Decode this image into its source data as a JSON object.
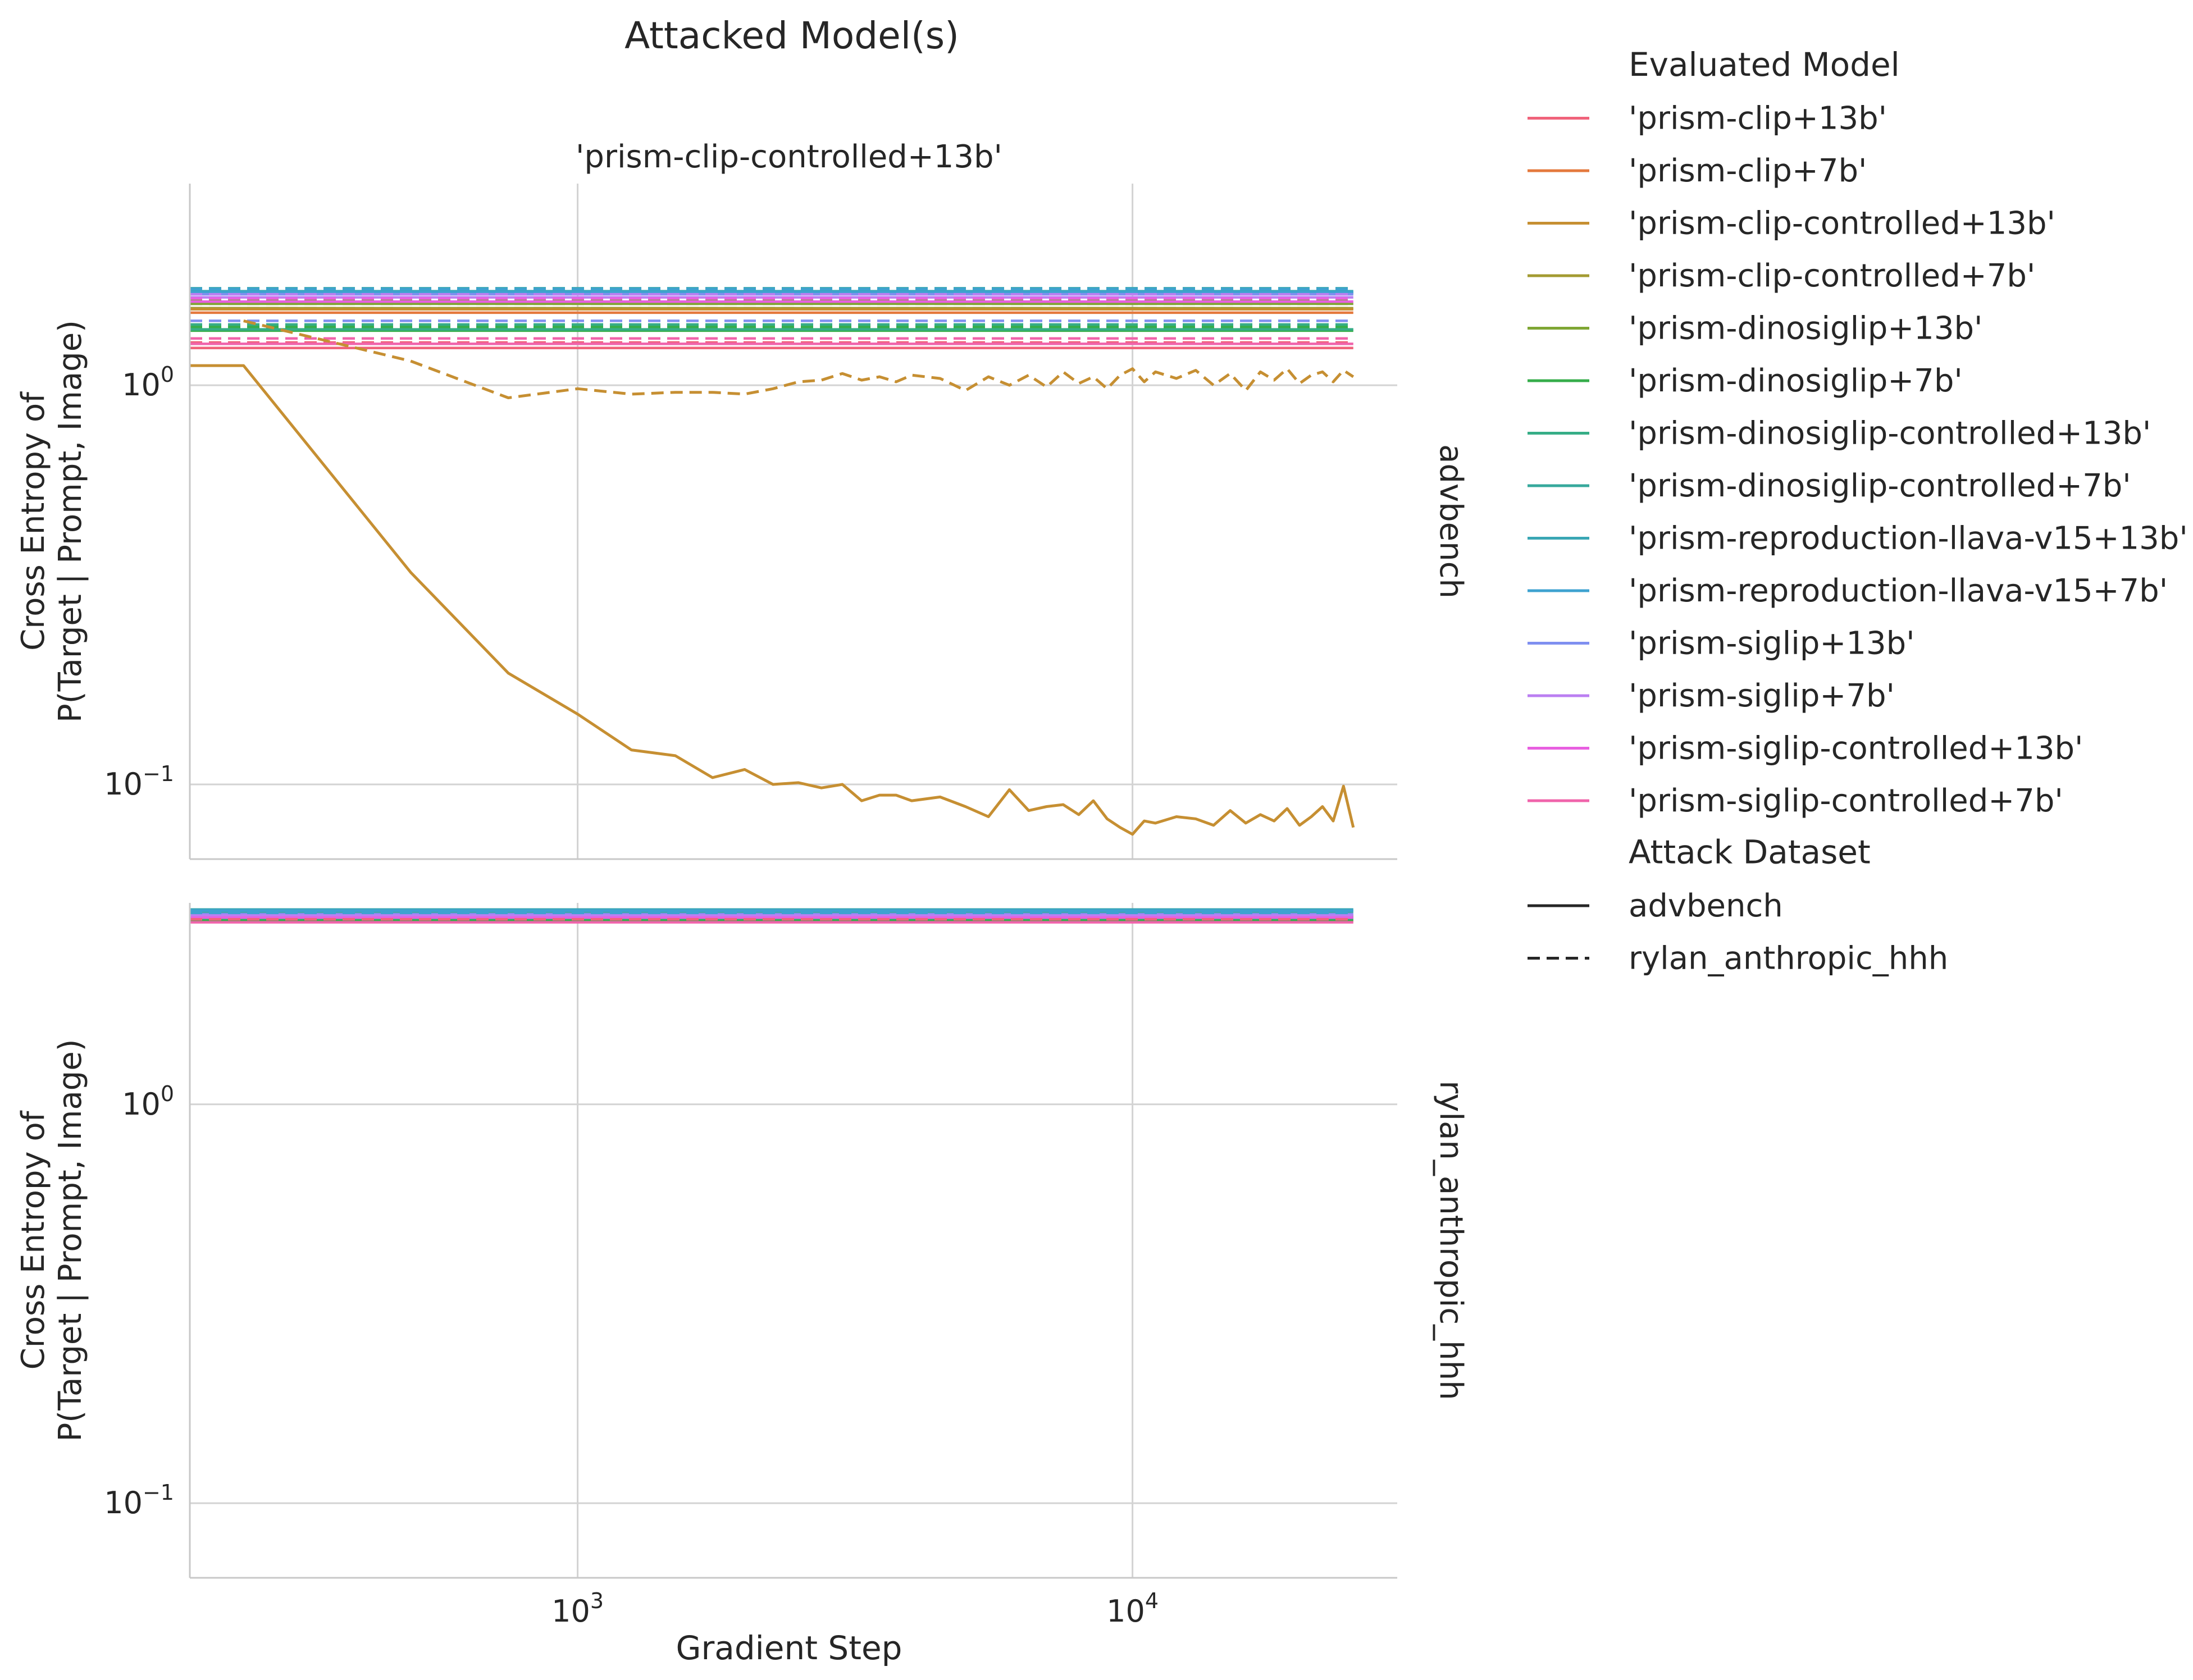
{
  "chart_data": {
    "type": "line",
    "suptitle": "Attacked Model(s)",
    "column_title": "'prism-clip-controlled+13b'",
    "xlabel": "Gradient Step",
    "ylabel_line1": "Cross Entropy of",
    "ylabel_line2": "P(Target | Prompt, Image)",
    "x_scale": "log",
    "y_scale": "log",
    "xlim": [
      200,
      30000
    ],
    "x_ticks": [
      {
        "base": "10",
        "exp": "3",
        "value": 1000
      },
      {
        "base": "10",
        "exp": "4",
        "value": 10000
      }
    ],
    "y_ticks": [
      {
        "base": "10",
        "exp": "0",
        "value": 1.0
      },
      {
        "base": "10",
        "exp": "−1",
        "value": 0.1
      }
    ],
    "grid": true,
    "panels": [
      {
        "row_label": "advbench",
        "ylim": [
          0.065,
          3.2
        ],
        "flat_lines": [
          {
            "model": 0,
            "dash": "solid",
            "value": 1.24
          },
          {
            "model": 0,
            "dash": "dashed",
            "value": 1.28
          },
          {
            "model": 1,
            "dash": "solid",
            "value": 1.52
          },
          {
            "model": 1,
            "dash": "dashed",
            "value": 1.56
          },
          {
            "model": 3,
            "dash": "solid",
            "value": 1.56
          },
          {
            "model": 3,
            "dash": "dashed",
            "value": 1.6
          },
          {
            "model": 4,
            "dash": "solid",
            "value": 1.6
          },
          {
            "model": 4,
            "dash": "dashed",
            "value": 1.63
          },
          {
            "model": 5,
            "dash": "solid",
            "value": 1.37
          },
          {
            "model": 5,
            "dash": "dashed",
            "value": 1.4
          },
          {
            "model": 6,
            "dash": "solid",
            "value": 1.38
          },
          {
            "model": 6,
            "dash": "dashed",
            "value": 1.42
          },
          {
            "model": 7,
            "dash": "solid",
            "value": 1.7
          },
          {
            "model": 7,
            "dash": "dashed",
            "value": 1.73
          },
          {
            "model": 8,
            "dash": "solid",
            "value": 1.72
          },
          {
            "model": 8,
            "dash": "dashed",
            "value": 1.75
          },
          {
            "model": 9,
            "dash": "solid",
            "value": 1.71
          },
          {
            "model": 9,
            "dash": "dashed",
            "value": 1.74
          },
          {
            "model": 10,
            "dash": "solid",
            "value": 1.69
          },
          {
            "model": 10,
            "dash": "dashed",
            "value": 1.45
          },
          {
            "model": 11,
            "dash": "solid",
            "value": 1.66
          },
          {
            "model": 11,
            "dash": "dashed",
            "value": 1.69
          },
          {
            "model": 12,
            "dash": "solid",
            "value": 1.62
          },
          {
            "model": 12,
            "dash": "dashed",
            "value": 1.65
          },
          {
            "model": 13,
            "dash": "solid",
            "value": 1.27
          },
          {
            "model": 13,
            "dash": "dashed",
            "value": 1.31
          }
        ],
        "attacked_series": [
          {
            "model": 2,
            "dash": "solid",
            "x": [
              200,
              250,
              500,
              750,
              1000,
              1250,
              1500,
              1750,
              2000,
              2250,
              2500,
              2750,
              3000,
              3250,
              3500,
              3750,
              4000,
              4500,
              5000,
              5500,
              6000,
              6500,
              7000,
              7500,
              8000,
              8500,
              9000,
              9500,
              10000,
              10500,
              11000,
              12000,
              13000,
              14000,
              15000,
              16000,
              17000,
              18000,
              19000,
              20000,
              21000,
              22000,
              23000,
              24000,
              25000
            ],
            "y": [
              1.12,
              1.12,
              0.34,
              0.19,
              0.15,
              0.122,
              0.118,
              0.104,
              0.109,
              0.1,
              0.101,
              0.098,
              0.1,
              0.091,
              0.094,
              0.094,
              0.091,
              0.093,
              0.088,
              0.083,
              0.097,
              0.086,
              0.088,
              0.089,
              0.084,
              0.091,
              0.082,
              0.078,
              0.075,
              0.081,
              0.08,
              0.083,
              0.082,
              0.079,
              0.086,
              0.08,
              0.084,
              0.081,
              0.087,
              0.079,
              0.083,
              0.088,
              0.081,
              0.099,
              0.078
            ]
          },
          {
            "model": 2,
            "dash": "dashed",
            "x": [
              250,
              500,
              750,
              1000,
              1250,
              1500,
              1750,
              2000,
              2250,
              2500,
              2750,
              3000,
              3250,
              3500,
              3750,
              4000,
              4500,
              5000,
              5500,
              6000,
              6500,
              7000,
              7500,
              8000,
              8500,
              9000,
              9500,
              10000,
              10500,
              11000,
              12000,
              13000,
              14000,
              15000,
              16000,
              17000,
              18000,
              19000,
              20000,
              21000,
              22000,
              23000,
              24000,
              25000
            ],
            "y": [
              1.45,
              1.15,
              0.93,
              0.98,
              0.95,
              0.96,
              0.96,
              0.95,
              0.98,
              1.02,
              1.03,
              1.07,
              1.03,
              1.05,
              1.02,
              1.06,
              1.04,
              0.97,
              1.05,
              1.0,
              1.06,
              0.99,
              1.08,
              1.01,
              1.05,
              0.98,
              1.06,
              1.1,
              1.02,
              1.08,
              1.04,
              1.09,
              1.0,
              1.07,
              0.97,
              1.08,
              1.03,
              1.1,
              1.01,
              1.06,
              1.08,
              1.02,
              1.09,
              1.05
            ]
          },
          {
            "model": 2,
            "dash": "flat-solid-top",
            "value": 1.55
          }
        ]
      },
      {
        "row_label": "rylan_anthropic_hhh",
        "ylim": [
          0.065,
          3.2
        ],
        "flat_lines": [
          {
            "model": 0,
            "dash": "solid",
            "value": 2.88
          },
          {
            "model": 1,
            "dash": "solid",
            "value": 2.95
          },
          {
            "model": 2,
            "dash": "dashed",
            "value": 2.92
          },
          {
            "model": 3,
            "dash": "solid",
            "value": 2.96
          },
          {
            "model": 4,
            "dash": "solid",
            "value": 2.97
          },
          {
            "model": 5,
            "dash": "solid",
            "value": 2.9
          },
          {
            "model": 6,
            "dash": "solid",
            "value": 2.93
          },
          {
            "model": 7,
            "dash": "solid",
            "value": 3.04
          },
          {
            "model": 8,
            "dash": "solid",
            "value": 3.08
          },
          {
            "model": 9,
            "dash": "solid",
            "value": 3.06
          },
          {
            "model": 10,
            "dash": "solid",
            "value": 3.0
          },
          {
            "model": 11,
            "dash": "solid",
            "value": 2.98
          },
          {
            "model": 12,
            "dash": "solid",
            "value": 2.94
          },
          {
            "model": 13,
            "dash": "solid",
            "value": 2.86
          },
          {
            "model": 0,
            "dash": "dashed",
            "value": 2.91
          },
          {
            "model": 9,
            "dash": "dashed",
            "value": 3.02
          }
        ]
      }
    ],
    "legend": {
      "placement": "right",
      "hue_title": "Evaluated Model",
      "models": [
        {
          "name": "'prism-clip+13b'",
          "color": "#f0637b"
        },
        {
          "name": "'prism-clip+7b'",
          "color": "#e4793d"
        },
        {
          "name": "'prism-clip-controlled+13b'",
          "color": "#c68f32"
        },
        {
          "name": "'prism-clip-controlled+7b'",
          "color": "#a39b32"
        },
        {
          "name": "'prism-dinosiglip+13b'",
          "color": "#7fa634"
        },
        {
          "name": "'prism-dinosiglip+7b'",
          "color": "#36ad4b"
        },
        {
          "name": "'prism-dinosiglip-controlled+13b'",
          "color": "#36ad86"
        },
        {
          "name": "'prism-dinosiglip-controlled+7b'",
          "color": "#37a99c"
        },
        {
          "name": "'prism-reproduction-llava-v15+13b'",
          "color": "#39a6b4"
        },
        {
          "name": "'prism-reproduction-llava-v15+7b'",
          "color": "#3ea2d0"
        },
        {
          "name": "'prism-siglip+13b'",
          "color": "#7f8ff0"
        },
        {
          "name": "'prism-siglip+7b'",
          "color": "#bb7ff2"
        },
        {
          "name": "'prism-siglip-controlled+13b'",
          "color": "#e85fe0"
        },
        {
          "name": "'prism-siglip-controlled+7b'",
          "color": "#f064ab"
        }
      ],
      "style_title": "Attack Dataset",
      "styles": [
        {
          "name": "advbench",
          "dash": "solid",
          "color": "#262626"
        },
        {
          "name": "rylan_anthropic_hhh",
          "dash": "dashed",
          "color": "#262626"
        }
      ]
    },
    "colors": {
      "grid": "#d3d3d3",
      "axis": "#c8c8c8",
      "text": "#262626"
    }
  }
}
